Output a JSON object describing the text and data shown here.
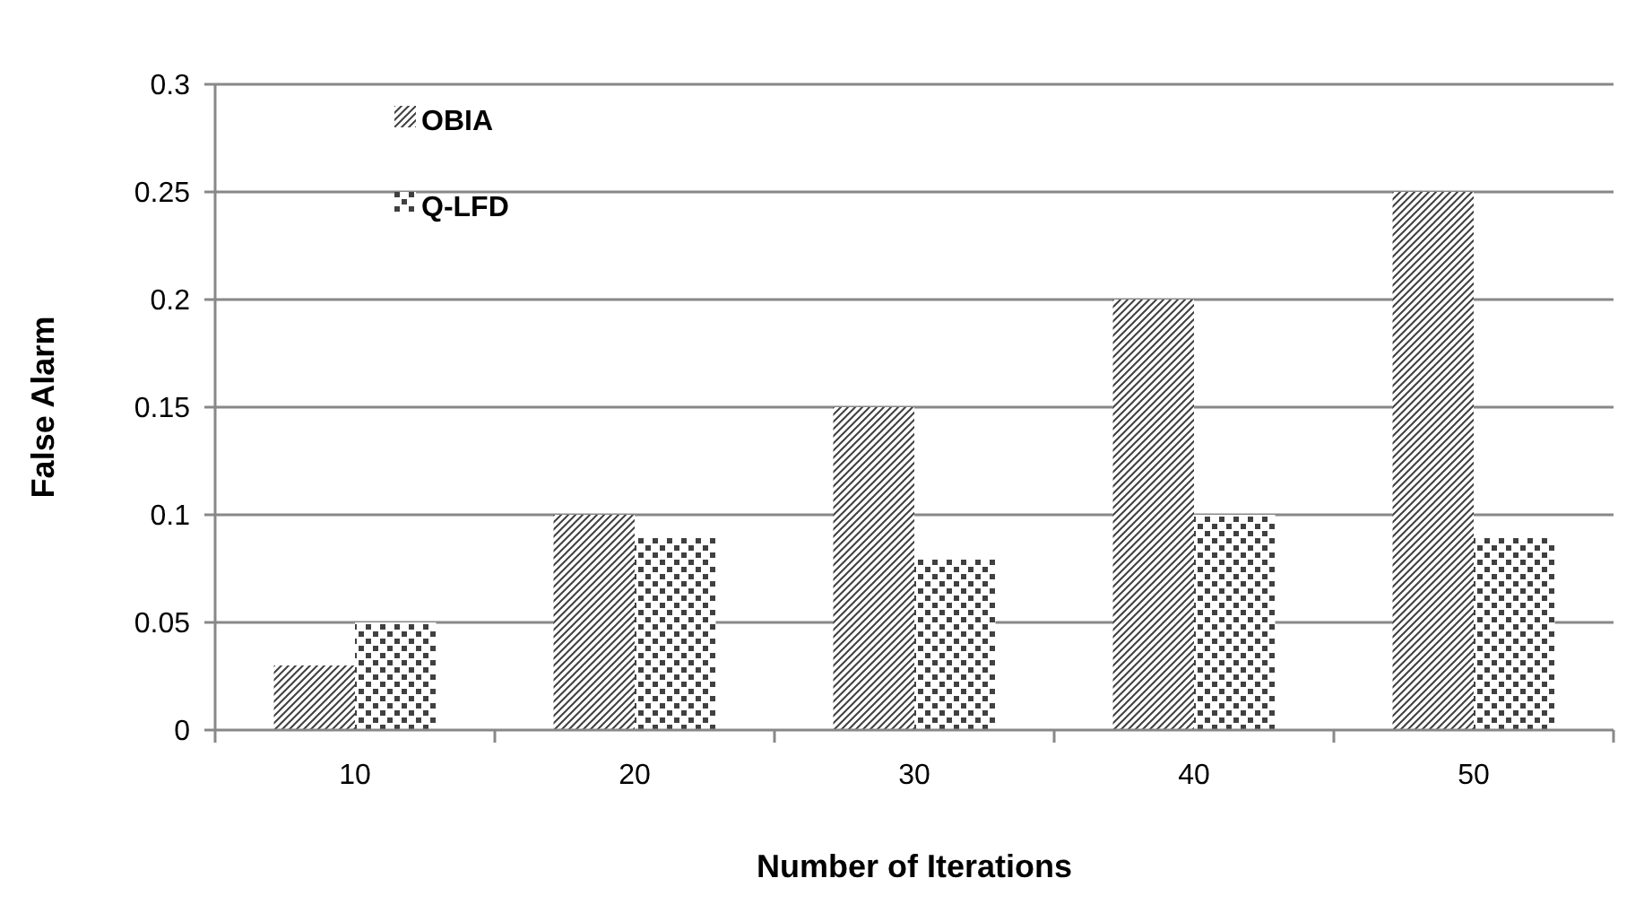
{
  "chart_data": {
    "type": "bar",
    "xlabel": "Number of Iterations",
    "ylabel": "False Alarm",
    "categories": [
      "10",
      "20",
      "30",
      "40",
      "50"
    ],
    "series": [
      {
        "name": "OBIA",
        "color": "#404040",
        "values": [
          0.03,
          0.1,
          0.15,
          0.2,
          0.25
        ]
      },
      {
        "name": "Q-LFD",
        "color": "#404040",
        "values": [
          0.05,
          0.09,
          0.08,
          0.1,
          0.09
        ]
      }
    ],
    "ylim": [
      0,
      0.3
    ],
    "yticks": [
      0,
      0.05,
      0.1,
      0.15,
      0.2,
      0.25,
      0.3
    ],
    "grid": "y",
    "legend": "top left"
  }
}
